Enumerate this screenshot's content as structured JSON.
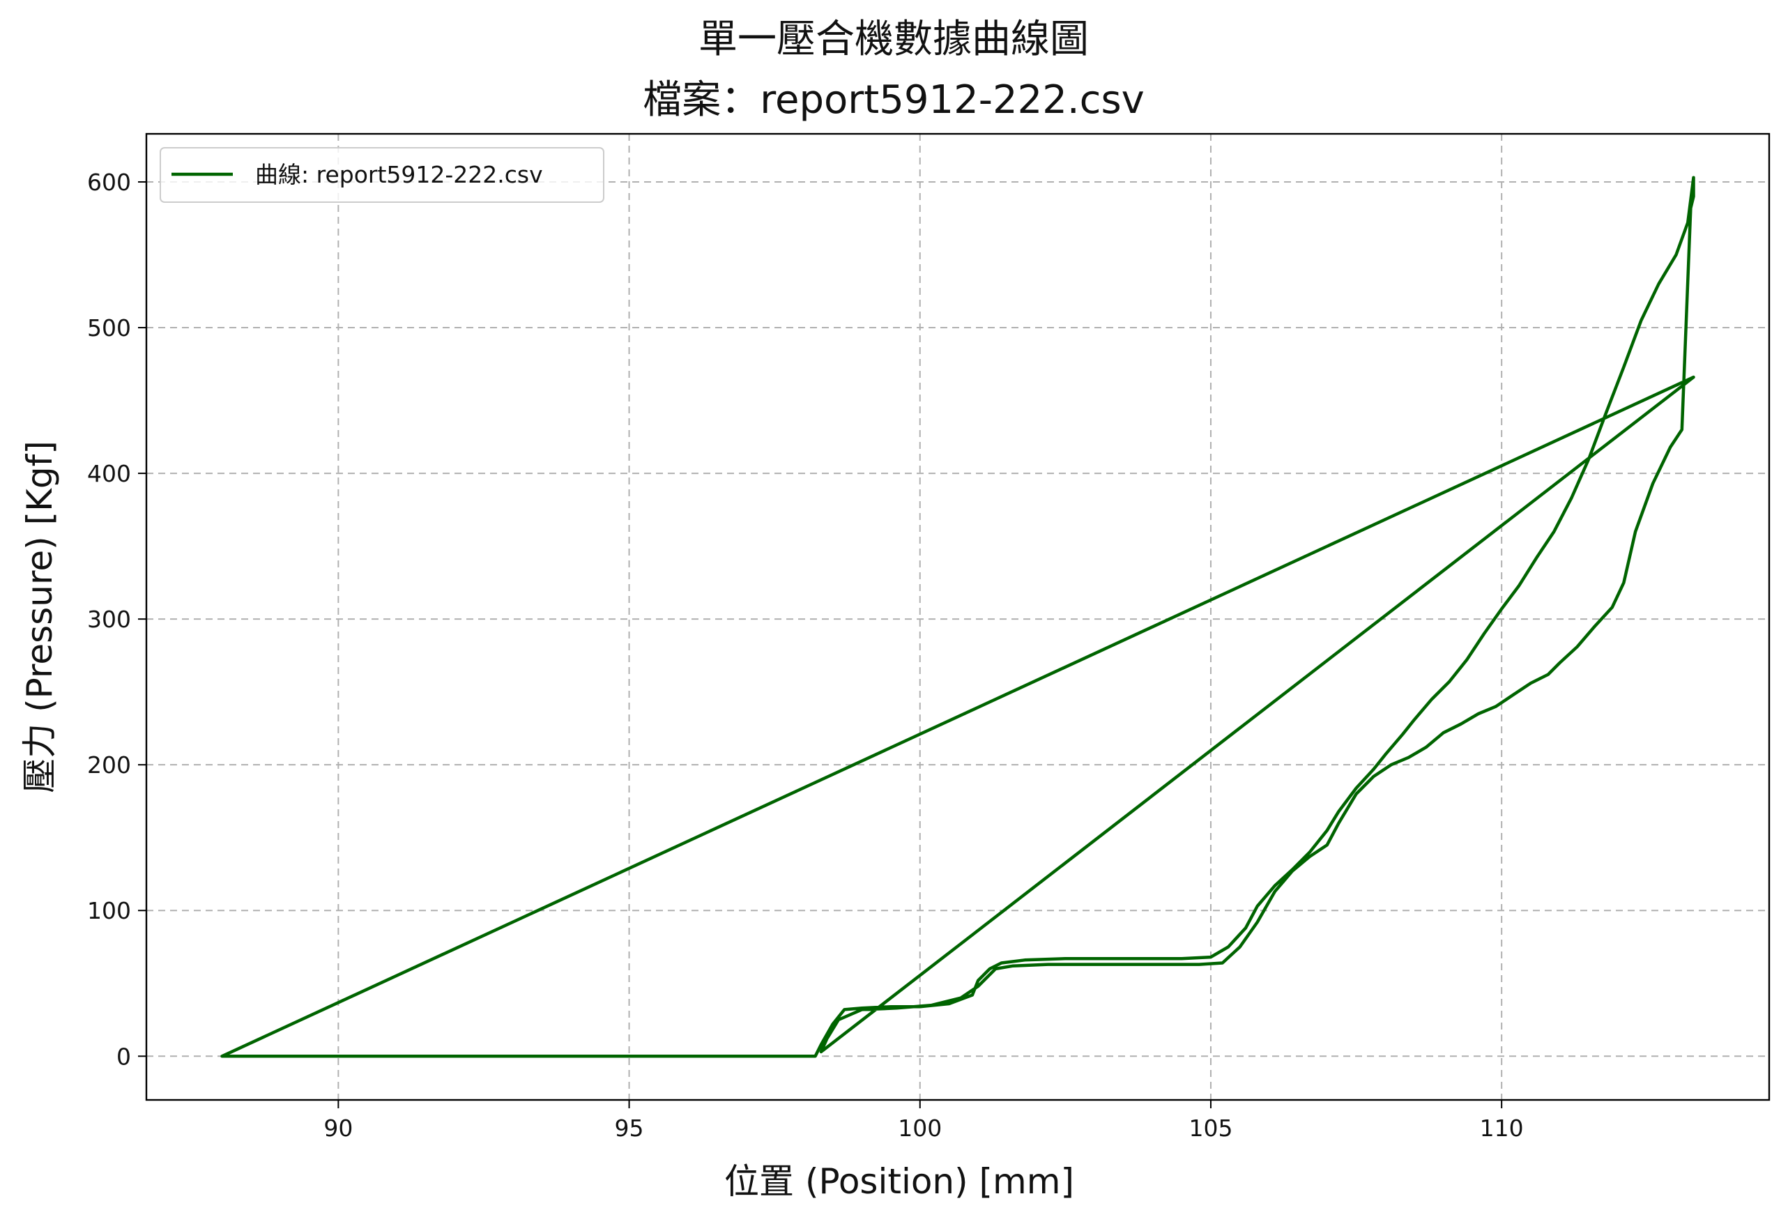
{
  "chart_data": {
    "type": "line",
    "title": "單一壓合機數據曲線圖",
    "subtitle": "檔案：report5912-222.csv",
    "xlabel": "位置 (Position) [mm]",
    "ylabel": "壓力 (Pressure) [Kgf]",
    "xlim": [
      86.7,
      114.6
    ],
    "ylim": [
      -30,
      633
    ],
    "xticks": [
      90,
      95,
      100,
      105,
      110
    ],
    "yticks": [
      0,
      100,
      200,
      300,
      400,
      500,
      600
    ],
    "grid": true,
    "legend_position": "top-left",
    "series": [
      {
        "name": "曲線: report5912-222.csv",
        "color": "#006400",
        "points": [
          [
            88.0,
            0
          ],
          [
            90.0,
            0
          ],
          [
            92.5,
            0
          ],
          [
            95.0,
            0
          ],
          [
            97.0,
            0
          ],
          [
            98.2,
            0
          ],
          [
            98.3,
            8
          ],
          [
            98.5,
            22
          ],
          [
            98.7,
            32
          ],
          [
            99.0,
            33
          ],
          [
            99.5,
            34
          ],
          [
            100.0,
            34
          ],
          [
            100.5,
            36
          ],
          [
            100.9,
            42
          ],
          [
            101.0,
            52
          ],
          [
            101.2,
            60
          ],
          [
            101.4,
            64
          ],
          [
            101.8,
            66
          ],
          [
            102.5,
            67
          ],
          [
            103.5,
            67
          ],
          [
            104.5,
            67
          ],
          [
            105.0,
            68
          ],
          [
            105.3,
            75
          ],
          [
            105.6,
            88
          ],
          [
            105.8,
            103
          ],
          [
            106.1,
            117
          ],
          [
            106.4,
            128
          ],
          [
            106.7,
            140
          ],
          [
            107.0,
            155
          ],
          [
            107.2,
            168
          ],
          [
            107.5,
            184
          ],
          [
            107.8,
            197
          ],
          [
            108.0,
            207
          ],
          [
            108.3,
            221
          ],
          [
            108.5,
            231
          ],
          [
            108.8,
            245
          ],
          [
            109.1,
            257
          ],
          [
            109.4,
            272
          ],
          [
            109.7,
            290
          ],
          [
            110.0,
            307
          ],
          [
            110.3,
            323
          ],
          [
            110.6,
            342
          ],
          [
            110.9,
            360
          ],
          [
            111.2,
            383
          ],
          [
            111.5,
            410
          ],
          [
            111.8,
            442
          ],
          [
            112.1,
            473
          ],
          [
            112.4,
            505
          ],
          [
            112.7,
            530
          ],
          [
            113.0,
            550
          ],
          [
            113.2,
            572
          ],
          [
            113.3,
            603
          ],
          [
            113.3,
            590
          ],
          [
            113.25,
            582
          ],
          [
            113.1,
            430
          ],
          [
            112.9,
            418
          ],
          [
            112.6,
            393
          ],
          [
            112.3,
            360
          ],
          [
            112.1,
            325
          ],
          [
            111.9,
            308
          ],
          [
            111.6,
            295
          ],
          [
            111.3,
            281
          ],
          [
            111.0,
            270
          ],
          [
            110.8,
            262
          ],
          [
            110.5,
            256
          ],
          [
            110.2,
            248
          ],
          [
            109.9,
            240
          ],
          [
            109.6,
            235
          ],
          [
            109.3,
            228
          ],
          [
            109.0,
            222
          ],
          [
            108.7,
            212
          ],
          [
            108.4,
            205
          ],
          [
            108.1,
            200
          ],
          [
            107.8,
            192
          ],
          [
            107.5,
            180
          ],
          [
            107.2,
            160
          ],
          [
            107.0,
            145
          ],
          [
            106.7,
            137
          ],
          [
            106.4,
            127
          ],
          [
            106.1,
            113
          ],
          [
            105.8,
            92
          ],
          [
            105.5,
            75
          ],
          [
            105.2,
            64
          ],
          [
            104.8,
            63
          ],
          [
            104.0,
            63
          ],
          [
            103.0,
            63
          ],
          [
            102.2,
            63
          ],
          [
            101.6,
            62
          ],
          [
            101.3,
            60
          ],
          [
            101.0,
            48
          ],
          [
            100.7,
            40
          ],
          [
            100.2,
            35
          ],
          [
            99.6,
            33
          ],
          [
            99.0,
            32
          ],
          [
            98.6,
            25
          ],
          [
            98.4,
            12
          ],
          [
            98.3,
            3
          ],
          [
            113.3,
            466
          ],
          [
            88.0,
            0
          ]
        ]
      }
    ]
  }
}
